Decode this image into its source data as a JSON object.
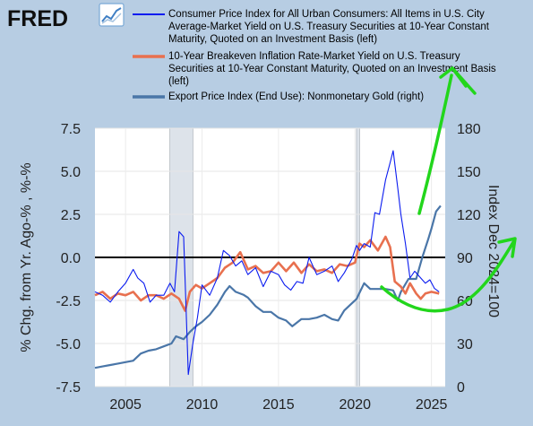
{
  "brand": {
    "logo": "FRED",
    "icon": "line-chart-icon"
  },
  "colors": {
    "background": "#b7cde3",
    "cpi": "#0b1cf0",
    "breakeven": "#e8704f",
    "gold": "#4a76a8",
    "zero_line": "#000000",
    "recession": "#dde3ea",
    "annotation": "#22d61c"
  },
  "chart_data": {
    "type": "line",
    "title": "",
    "xlabel": "",
    "ylabel_left": "% Chg. from Yr. Ago-% , %-%",
    "ylabel_right": "Index Dec 2024=100",
    "xlim": [
      2003.0,
      2025.9
    ],
    "ylim_left": [
      -7.5,
      7.5
    ],
    "ylim_right": [
      0,
      180
    ],
    "x_ticks": [
      2005,
      2010,
      2015,
      2020,
      2025
    ],
    "x_tick_labels": [
      "2005",
      "2010",
      "2015",
      "2020",
      "2025"
    ],
    "y_left_ticks": [
      7.5,
      5.0,
      2.5,
      0.0,
      -2.5,
      -5.0,
      -7.5
    ],
    "y_left_tick_labels": [
      "7.5",
      "5.0",
      "2.5",
      "0.0",
      "-2.5",
      "-5.0",
      "-7.5"
    ],
    "y_right_ticks": [
      180,
      150,
      120,
      90,
      60,
      30,
      0
    ],
    "y_right_tick_labels": [
      "180",
      "150",
      "120",
      "90",
      "60",
      "30",
      "0"
    ],
    "recessions": [
      [
        2007.9,
        2009.4
      ],
      [
        2020.1,
        2020.3
      ]
    ],
    "series": [
      {
        "name": "Consumer Price Index for All Urban Consumers: All Items in U.S. City Average-Market Yield on U.S. Treasury Securities at 10-Year Constant Maturity, Quoted on an Investment Basis (left)",
        "axis": "left",
        "x": [
          2003.0,
          2003.5,
          2004.0,
          2004.5,
          2005.0,
          2005.5,
          2005.8,
          2006.2,
          2006.6,
          2007.0,
          2007.5,
          2007.9,
          2008.2,
          2008.5,
          2008.8,
          2009.1,
          2009.4,
          2009.7,
          2010.0,
          2010.5,
          2011.0,
          2011.4,
          2011.8,
          2012.2,
          2012.6,
          2013.0,
          2013.5,
          2014.0,
          2014.5,
          2015.0,
          2015.4,
          2015.8,
          2016.2,
          2016.6,
          2017.0,
          2017.5,
          2018.0,
          2018.5,
          2018.9,
          2019.3,
          2019.8,
          2020.1,
          2020.3,
          2020.6,
          2021.0,
          2021.3,
          2021.6,
          2022.0,
          2022.3,
          2022.5,
          2022.8,
          2023.0,
          2023.3,
          2023.6,
          2023.9,
          2024.2,
          2024.6,
          2024.9,
          2025.2,
          2025.5
        ],
        "y": [
          -2.0,
          -2.2,
          -2.6,
          -2.0,
          -1.5,
          -0.7,
          -1.2,
          -1.5,
          -2.6,
          -2.2,
          -2.2,
          -1.5,
          -2.0,
          1.5,
          1.2,
          -6.8,
          -5.0,
          -3.5,
          -1.6,
          -2.2,
          -1.2,
          0.4,
          0.1,
          -0.5,
          -0.2,
          -1.0,
          -0.6,
          -1.7,
          -0.8,
          -1.0,
          -1.6,
          -1.9,
          -1.4,
          -1.5,
          0.0,
          -1.0,
          -0.8,
          -0.5,
          -1.4,
          -0.9,
          -0.1,
          0.7,
          0.4,
          0.8,
          0.6,
          2.6,
          2.5,
          4.5,
          5.5,
          6.2,
          4.0,
          2.5,
          0.8,
          -1.2,
          -0.8,
          -1.1,
          -1.5,
          -1.3,
          -1.8,
          -2.0
        ]
      },
      {
        "name": "10-Year Breakeven Inflation Rate-Market Yield on U.S. Treasury Securities at 10-Year Constant Maturity, Quoted on an Investment Basis (left)",
        "axis": "left",
        "x": [
          2003.0,
          2003.5,
          2004.0,
          2004.5,
          2005.0,
          2005.5,
          2006.0,
          2006.5,
          2007.0,
          2007.5,
          2008.0,
          2008.5,
          2008.9,
          2009.2,
          2009.6,
          2010.0,
          2010.5,
          2011.0,
          2011.5,
          2012.0,
          2012.5,
          2013.0,
          2013.5,
          2014.0,
          2014.5,
          2015.0,
          2015.5,
          2016.0,
          2016.5,
          2017.0,
          2017.5,
          2018.0,
          2018.5,
          2019.0,
          2019.5,
          2020.0,
          2020.3,
          2020.6,
          2021.0,
          2021.5,
          2022.0,
          2022.3,
          2022.6,
          2023.0,
          2023.3,
          2023.6,
          2024.0,
          2024.3,
          2024.6,
          2025.0,
          2025.5
        ],
        "y": [
          -2.2,
          -2.0,
          -2.4,
          -2.1,
          -2.2,
          -2.0,
          -2.5,
          -2.2,
          -2.2,
          -2.4,
          -2.1,
          -2.4,
          -3.1,
          -2.0,
          -1.6,
          -1.8,
          -1.5,
          -1.2,
          -0.6,
          -0.3,
          0.3,
          -0.7,
          -0.5,
          -0.9,
          -0.8,
          -0.3,
          -0.8,
          -0.3,
          -0.9,
          -0.4,
          -0.8,
          -0.7,
          -0.9,
          -0.4,
          -0.5,
          -0.3,
          0.8,
          0.6,
          1.0,
          0.4,
          1.2,
          0.6,
          -1.4,
          -1.7,
          -2.1,
          -1.5,
          -2.1,
          -2.4,
          -2.1,
          -2.0,
          -2.1
        ]
      },
      {
        "name": "Export Price Index (End Use): Nonmonetary Gold (right)",
        "axis": "right",
        "x": [
          2003.0,
          2003.5,
          2004.0,
          2004.5,
          2005.0,
          2005.5,
          2006.0,
          2006.5,
          2007.0,
          2007.5,
          2008.0,
          2008.3,
          2008.8,
          2009.2,
          2009.6,
          2010.0,
          2010.5,
          2011.0,
          2011.5,
          2011.8,
          2012.2,
          2012.7,
          2013.0,
          2013.5,
          2014.0,
          2014.5,
          2015.0,
          2015.5,
          2015.9,
          2016.5,
          2017.0,
          2017.5,
          2018.0,
          2018.5,
          2018.9,
          2019.3,
          2019.8,
          2020.1,
          2020.6,
          2021.0,
          2021.5,
          2022.0,
          2022.5,
          2022.8,
          2023.0,
          2023.5,
          2024.0,
          2024.4,
          2024.8,
          2025.0,
          2025.3,
          2025.6
        ],
        "y": [
          13,
          14,
          15,
          16,
          17,
          18,
          23,
          25,
          26,
          28,
          30,
          35,
          33,
          38,
          42,
          45,
          50,
          57,
          66,
          70,
          66,
          64,
          62,
          56,
          52,
          52,
          48,
          46,
          42,
          47,
          47,
          48,
          50,
          47,
          46,
          53,
          58,
          61,
          72,
          68,
          68,
          68,
          67,
          60,
          66,
          75,
          75,
          90,
          103,
          110,
          122,
          126
        ]
      }
    ],
    "annotations": [
      {
        "type": "freehand-arrow",
        "description": "green hand-drawn arrow pointing up toward legend"
      },
      {
        "type": "freehand-arrow",
        "description": "green hand-drawn arrow pointing right toward right axis"
      }
    ]
  },
  "legend": {
    "items": [
      {
        "lines": [
          "Consumer Price Index for All Urban Consumers: All Items in U.S. City",
          "Average-Market Yield on U.S. Treasury Securities at 10-Year Constant",
          "Maturity, Quoted on an Investment Basis (left)"
        ]
      },
      {
        "lines": [
          "10-Year Breakeven Inflation Rate-Market Yield on U.S. Treasury",
          "Securities at 10-Year Constant Maturity, Quoted on an Investment Basis",
          "(left)"
        ]
      },
      {
        "lines": [
          "Export Price Index (End Use): Nonmonetary Gold (right)"
        ]
      }
    ]
  }
}
